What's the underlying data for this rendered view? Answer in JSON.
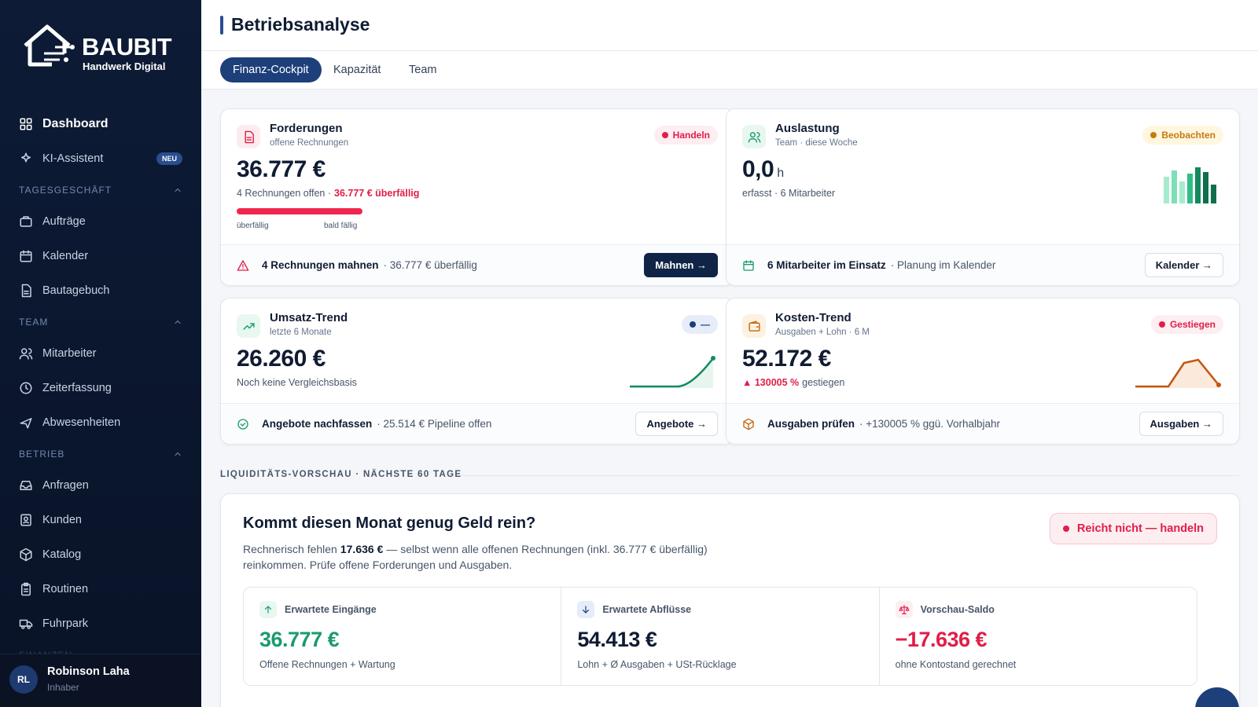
{
  "sidebar": {
    "brand": "BAUBIT",
    "tagline": "Handwerk Digital",
    "primary": [
      {
        "label": "Dashboard"
      },
      {
        "label": "KI-Assistent",
        "badge": "NEU"
      }
    ],
    "sections": [
      {
        "title": "TAGESGESCHÄFT",
        "items": [
          "Aufträge",
          "Kalender",
          "Bautagebuch"
        ]
      },
      {
        "title": "TEAM",
        "items": [
          "Mitarbeiter",
          "Zeiterfassung",
          "Abwesenheiten"
        ]
      },
      {
        "title": "BETRIEB",
        "items": [
          "Anfragen",
          "Kunden",
          "Katalog",
          "Routinen",
          "Fuhrpark"
        ]
      },
      {
        "title": "FINANZEN"
      }
    ],
    "user": {
      "initials": "RL",
      "name": "Robinson Laha",
      "role": "Inhaber"
    }
  },
  "header": {
    "title": "Betriebsanalyse"
  },
  "tabs": [
    "Finanz-Cockpit",
    "Kapazität",
    "Team"
  ],
  "cards": [
    {
      "title": "Forderungen",
      "subtitle": "offene Rechnungen",
      "status": "Handeln",
      "value": "36.777 €",
      "note": {
        "text": "4 Rechnungen offen ·",
        "alert": "36.777 € überfällig"
      },
      "bar_labels": [
        "überfällig",
        "bald fällig"
      ],
      "action": "4 Rechnungen mahnen",
      "action_note": "· 36.777 € überfällig",
      "button": "Mahnen →"
    },
    {
      "title": "Auslastung",
      "subtitle": "Team · diese Woche",
      "status": "Beobachten",
      "value": "0,0",
      "unit": "h",
      "note": {
        "text": "erfasst · 6 Mitarbeiter"
      },
      "action": "6 Mitarbeiter im Einsatz",
      "action_note": "· Planung im Kalender",
      "button": "Kalender →"
    },
    {
      "title": "Umsatz-Trend",
      "subtitle": "letzte 6 Monate",
      "status": "—",
      "value": "26.260 €",
      "note": {
        "text": "Noch keine Vergleichsbasis"
      },
      "action": "Angebote nachfassen",
      "action_note": "· 25.514 € Pipeline offen",
      "button": "Angebote →"
    },
    {
      "title": "Kosten-Trend",
      "subtitle": "Ausgaben + Lohn · 6 M",
      "status": "Gestiegen",
      "value": "52.172 €",
      "note": {
        "alert": "▲ 130005 %",
        "text": "gestiegen"
      },
      "action": "Ausgaben prüfen",
      "action_note": "· +130005 % ggü. Vorhalbjahr",
      "button": "Ausgaben →"
    }
  ],
  "liquidity": {
    "section_label": "LIQUIDITÄTS-VORSCHAU · NÄCHSTE 60 TAGE",
    "heading": "Kommt diesen Monat genug Geld rein?",
    "text_before": "Rechnerisch fehlen",
    "amount": "17.636 €",
    "text_after": "— selbst wenn alle offenen Rechnungen (inkl. 36.777 € überfällig) reinkommen. Prüfe offene Forderungen und Ausgaben.",
    "status": "Reicht nicht — handeln",
    "metrics": [
      {
        "label": "Erwartete Eingänge",
        "value": "36.777 €",
        "note": "Offene Rechnungen + Wartung"
      },
      {
        "label": "Erwartete Abflüsse",
        "value": "54.413 €",
        "note": "Lohn + Ø Ausgaben + USt-Rücklage"
      },
      {
        "label": "Vorschau-Saldo",
        "value": "−17.636 €",
        "note": "ohne Kontostand gerechnet"
      }
    ]
  }
}
